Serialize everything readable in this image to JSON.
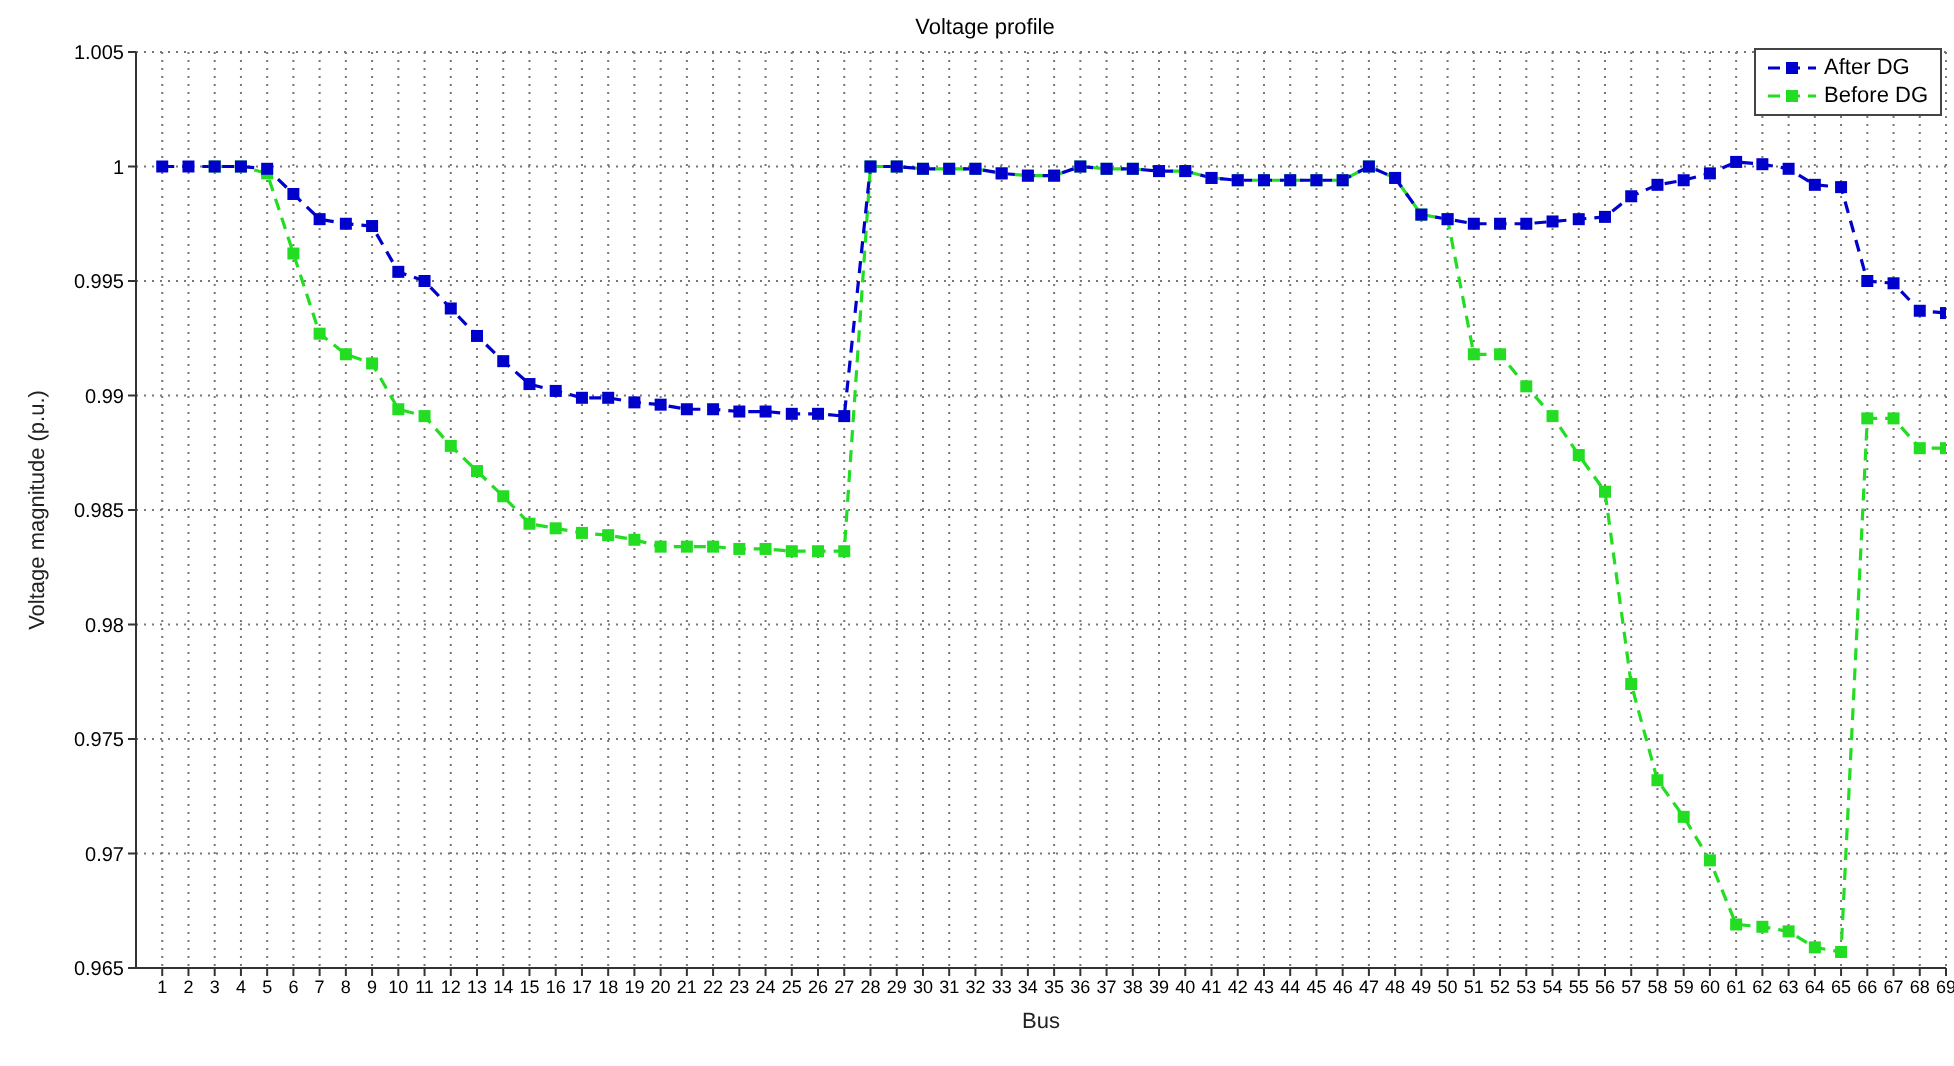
{
  "chart_data": {
    "type": "line",
    "title": "Voltage profile",
    "xlabel": "Bus",
    "ylabel": "Voltage magnitude (p.u.)",
    "x": [
      1,
      2,
      3,
      4,
      5,
      6,
      7,
      8,
      9,
      10,
      11,
      12,
      13,
      14,
      15,
      16,
      17,
      18,
      19,
      20,
      21,
      22,
      23,
      24,
      25,
      26,
      27,
      28,
      29,
      30,
      31,
      32,
      33,
      34,
      35,
      36,
      37,
      38,
      39,
      40,
      41,
      42,
      43,
      44,
      45,
      46,
      47,
      48,
      49,
      50,
      51,
      52,
      53,
      54,
      55,
      56,
      57,
      58,
      59,
      60,
      61,
      62,
      63,
      64,
      65,
      66,
      67,
      68,
      69
    ],
    "series": [
      {
        "name": "After DG",
        "color": "#0000cc",
        "values": [
          1.0,
          1.0,
          1.0,
          1.0,
          0.9999,
          0.9988,
          0.9977,
          0.9975,
          0.9974,
          0.9954,
          0.995,
          0.9938,
          0.9926,
          0.9915,
          0.9905,
          0.9902,
          0.9899,
          0.9899,
          0.9897,
          0.9896,
          0.9894,
          0.9894,
          0.9893,
          0.9893,
          0.9892,
          0.9892,
          0.9891,
          1.0,
          1.0,
          0.9999,
          0.9999,
          0.9999,
          0.9997,
          0.9996,
          0.9996,
          1.0,
          0.9999,
          0.9999,
          0.9998,
          0.9998,
          0.9995,
          0.9994,
          0.9994,
          0.9994,
          0.9994,
          0.9994,
          1.0,
          0.9995,
          0.9979,
          0.9977,
          0.9975,
          0.9975,
          0.9975,
          0.9976,
          0.9977,
          0.9978,
          0.9987,
          0.9992,
          0.9994,
          0.9997,
          1.0002,
          1.0001,
          0.9999,
          0.9992,
          0.9991,
          0.995,
          0.9949,
          0.9937,
          0.9936
        ]
      },
      {
        "name": "Before DG",
        "color": "#22dd22",
        "values": [
          null,
          null,
          1.0,
          1.0,
          0.9997,
          0.9962,
          0.9927,
          0.9918,
          0.9914,
          0.9894,
          0.9891,
          0.9878,
          0.9867,
          0.9856,
          0.9844,
          0.9842,
          0.984,
          0.9839,
          0.9837,
          0.9834,
          0.9834,
          0.9834,
          0.9833,
          0.9833,
          0.9832,
          0.9832,
          0.9832,
          1.0,
          1.0,
          0.9999,
          0.9999,
          0.9999,
          0.9997,
          0.9996,
          0.9996,
          1.0,
          0.9999,
          0.9999,
          0.9998,
          0.9998,
          0.9995,
          0.9994,
          0.9994,
          0.9994,
          0.9994,
          0.9994,
          1.0,
          0.9995,
          0.9979,
          0.9977,
          0.9918,
          0.9918,
          0.9904,
          0.9891,
          0.9874,
          0.9858,
          0.9774,
          0.9732,
          0.9716,
          0.9697,
          0.9669,
          0.9668,
          0.9666,
          0.9659,
          0.9657,
          0.989,
          0.989,
          0.9877,
          0.9877
        ]
      }
    ],
    "xlim": [
      0,
      69
    ],
    "xticks": [
      1,
      2,
      3,
      4,
      5,
      6,
      7,
      8,
      9,
      10,
      11,
      12,
      13,
      14,
      15,
      16,
      17,
      18,
      19,
      20,
      21,
      22,
      23,
      24,
      25,
      26,
      27,
      28,
      29,
      30,
      31,
      32,
      33,
      34,
      35,
      36,
      37,
      38,
      39,
      40,
      41,
      42,
      43,
      44,
      45,
      46,
      47,
      48,
      49,
      50,
      51,
      52,
      53,
      54,
      55,
      56,
      57,
      58,
      59,
      60,
      61,
      62,
      63,
      64,
      65,
      66,
      67,
      68,
      69
    ],
    "ylim": [
      0.965,
      1.005
    ],
    "yticks": [
      0.965,
      0.97,
      0.975,
      0.98,
      0.985,
      0.99,
      0.995,
      1,
      1.005
    ],
    "grid": true,
    "legend": "top right",
    "marker": "square",
    "line_style": "dashed"
  }
}
